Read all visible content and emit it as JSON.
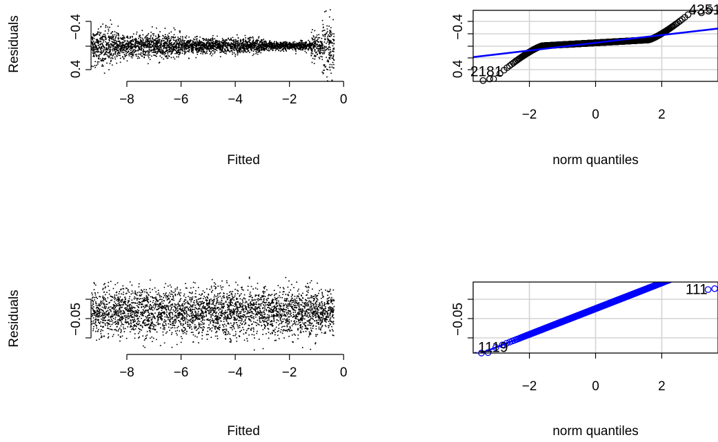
{
  "chart_data": [
    {
      "type": "scatter",
      "panel": "residuals-vs-fitted-top",
      "xlabel": "Fitted",
      "ylabel": "Residuals",
      "x_ticks": [
        -8,
        -6,
        -4,
        -2,
        0
      ],
      "y_ticks": [
        -0.4,
        0.4
      ],
      "xlim": [
        -9.5,
        0.3
      ],
      "ylim": [
        -0.85,
        0.85
      ],
      "grid": false,
      "shape": "funnel-narrowing",
      "x_range": [
        -9.3,
        -0.35
      ],
      "note_n_points": 3500
    },
    {
      "type": "scatter",
      "panel": "qq-top",
      "xlabel": "norm quantiles",
      "ylabel": "",
      "x_ticks": [
        -2,
        0,
        2
      ],
      "y_ticks": [
        -0.4,
        0.4
      ],
      "xlim": [
        -3.7,
        3.7
      ],
      "ylim": [
        -0.95,
        0.8
      ],
      "grid": true,
      "reference_line": {
        "intercept": 0.0,
        "slope": 0.095
      },
      "annotations": [
        {
          "text": "4351",
          "x": 3.3,
          "y": 0.7
        },
        {
          "text": "2181",
          "x": -3.3,
          "y": -0.82
        }
      ],
      "point_color": "#000000",
      "line_color": "#0000ff"
    },
    {
      "type": "scatter",
      "panel": "residuals-vs-fitted-bottom",
      "xlabel": "Fitted",
      "ylabel": "Residuals",
      "x_ticks": [
        -8,
        -6,
        -4,
        -2,
        0
      ],
      "y_ticks": [
        -0.05
      ],
      "xlim": [
        -9.5,
        0.3
      ],
      "ylim": [
        -0.11,
        0.07
      ],
      "grid": false,
      "shape": "constant-band"
    },
    {
      "type": "scatter",
      "panel": "qq-bottom",
      "xlabel": "norm quantiles",
      "ylabel": "",
      "x_ticks": [
        -2,
        0,
        2
      ],
      "y_ticks": [
        -0.05
      ],
      "xlim": [
        -3.7,
        3.7
      ],
      "ylim": [
        -0.1,
        0.06
      ],
      "grid": true,
      "reference_line": {
        "intercept": 0.0,
        "slope": 0.029
      },
      "annotations": [
        {
          "text": "111",
          "x": 3.05,
          "y": 0.033
        },
        {
          "text": "1119",
          "x": -3.1,
          "y": -0.098
        }
      ],
      "point_color": "#0000ff",
      "line_color": "#0000ff"
    }
  ]
}
